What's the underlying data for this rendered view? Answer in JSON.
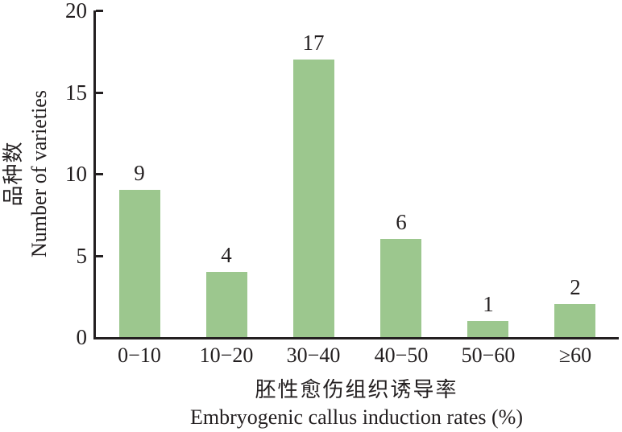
{
  "chart_data": {
    "type": "bar",
    "categories": [
      "0−10",
      "10−20",
      "30−40",
      "40−50",
      "50−60",
      "≥60"
    ],
    "values": [
      9,
      4,
      17,
      6,
      1,
      2
    ],
    "bar_labels": [
      "9",
      "4",
      "17",
      "6",
      "1",
      "2"
    ],
    "title": "",
    "xlabel_zh": "胚性愈伤组织诱导率",
    "xlabel_en": "Embryogenic callus induction rates (%)",
    "ylabel_zh": "品种数",
    "ylabel_en": "Number of varieties",
    "ylim": [
      0,
      20
    ],
    "y_ticks": [
      0,
      5,
      10,
      15,
      20
    ],
    "grid": false,
    "legend": "none",
    "bar_color": "#9cc78e",
    "axis_color": "#231f20",
    "text_color": "#231f20",
    "background_color": "#ffffff"
  }
}
